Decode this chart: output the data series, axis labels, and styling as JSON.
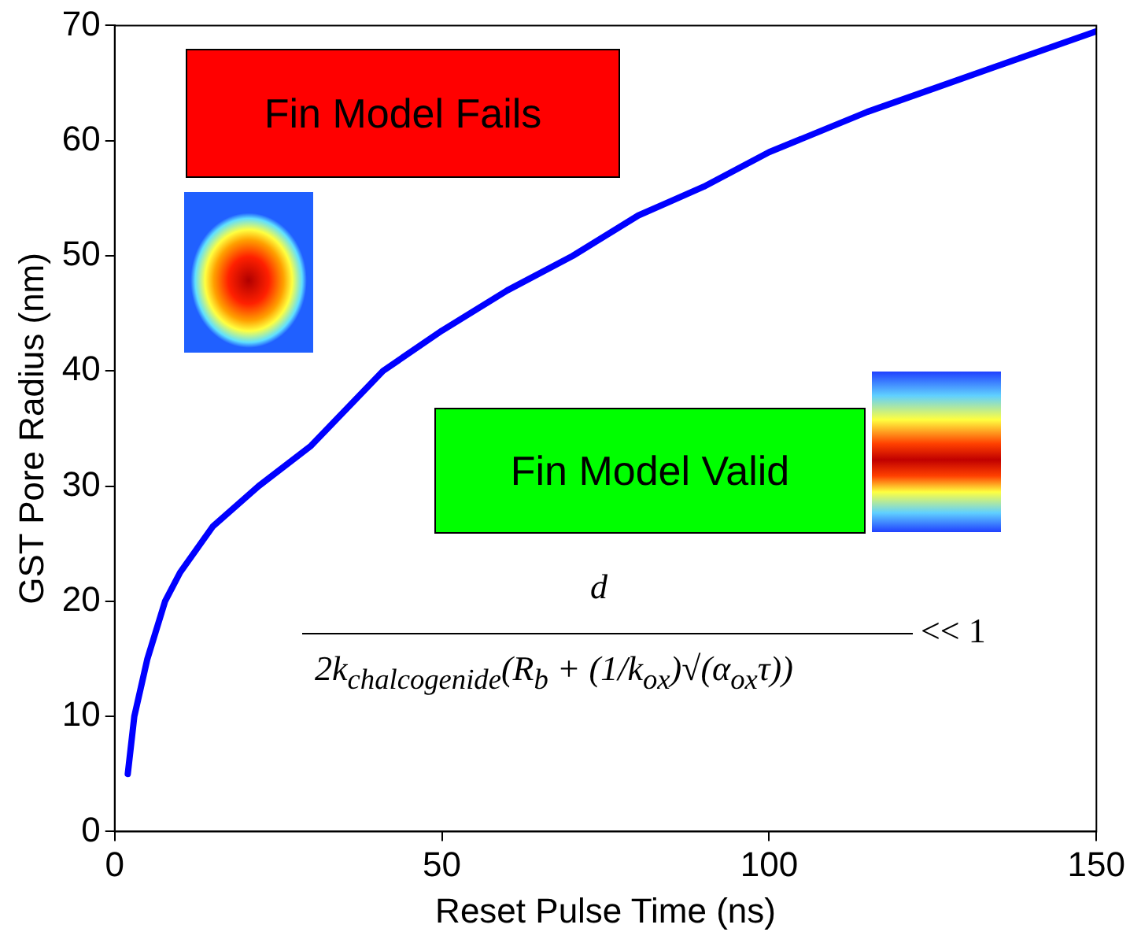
{
  "chart_data": {
    "type": "line",
    "xlabel": "Reset Pulse Time (ns)",
    "ylabel": "GST Pore Radius (nm)",
    "x": [
      2,
      3,
      5,
      7.7,
      10,
      15,
      22,
      30,
      41,
      50,
      60,
      70,
      80,
      90,
      100,
      115,
      125,
      135,
      150
    ],
    "series": [
      {
        "color": "#0000ff",
        "values": [
          5,
          10,
          15,
          20,
          22.5,
          26.5,
          30,
          33.5,
          40,
          43.5,
          47,
          50,
          53.5,
          56,
          59,
          62.5,
          64.5,
          66.5,
          69.5
        ]
      }
    ],
    "xlim": [
      0,
      150
    ],
    "xticks": [
      0,
      50,
      100,
      150
    ],
    "ylim": [
      0,
      70
    ],
    "yticks": [
      0,
      10,
      20,
      30,
      40,
      50,
      60,
      70
    ],
    "marker": "none",
    "line_style": "solid",
    "legend": false,
    "annotations": [
      "Fin Model Fails",
      "Fin Model Valid",
      "d",
      "2k$_{chalcogenide}$(R$_{b}$ + (1/k$_{ox}$)√(α$_{ox}$τ))",
      "<< 1"
    ]
  }
}
